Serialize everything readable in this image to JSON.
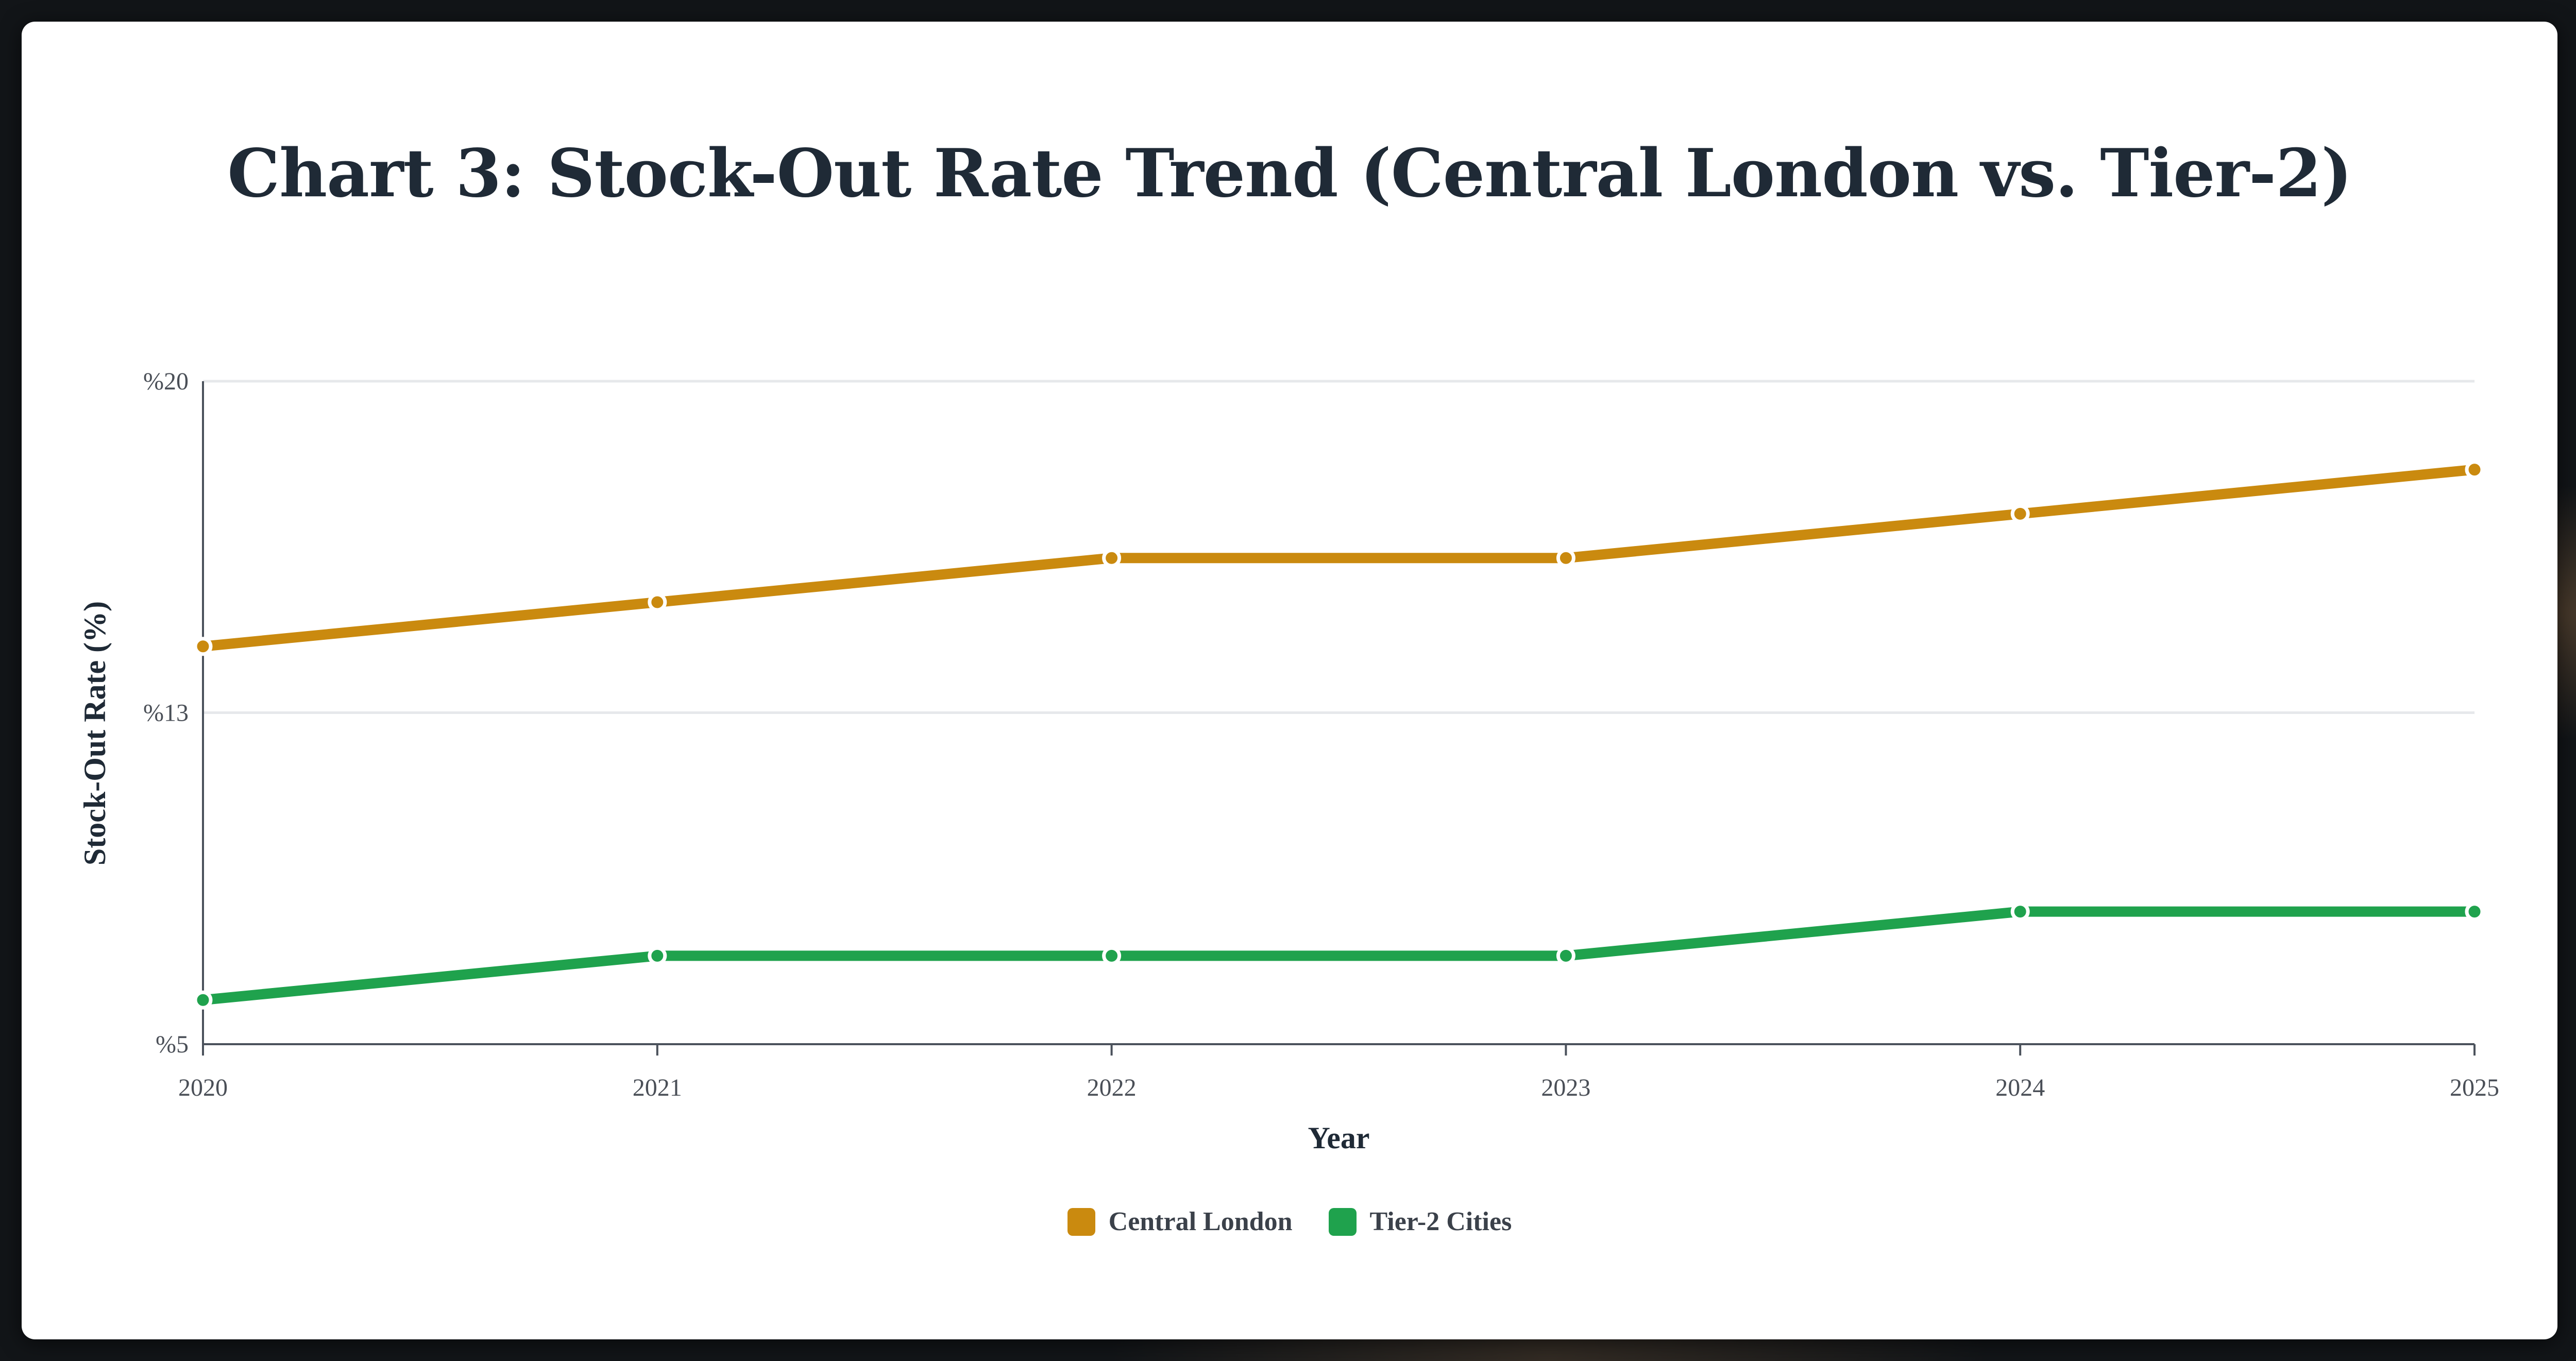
{
  "chart_data": {
    "type": "line",
    "title": "Chart 3: Stock-Out Rate Trend (Central London vs. Tier-2)",
    "xlabel": "Year",
    "ylabel": "Stock-Out Rate (%)",
    "categories": [
      "2020",
      "2021",
      "2022",
      "2023",
      "2024",
      "2025"
    ],
    "ylim": [
      5,
      20
    ],
    "yticks": [
      {
        "value": 5,
        "label": "%5"
      },
      {
        "value": 12.5,
        "label": "%13"
      },
      {
        "value": 20,
        "label": "%20"
      }
    ],
    "grid": true,
    "legend_position": "bottom-center",
    "series": [
      {
        "name": "Central London",
        "color": "#ca8a0f",
        "values": [
          14,
          15,
          16,
          16,
          17,
          18
        ]
      },
      {
        "name": "Tier-2 Cities",
        "color": "#1fa24d",
        "values": [
          6,
          7,
          7,
          7,
          8,
          8
        ]
      }
    ]
  }
}
